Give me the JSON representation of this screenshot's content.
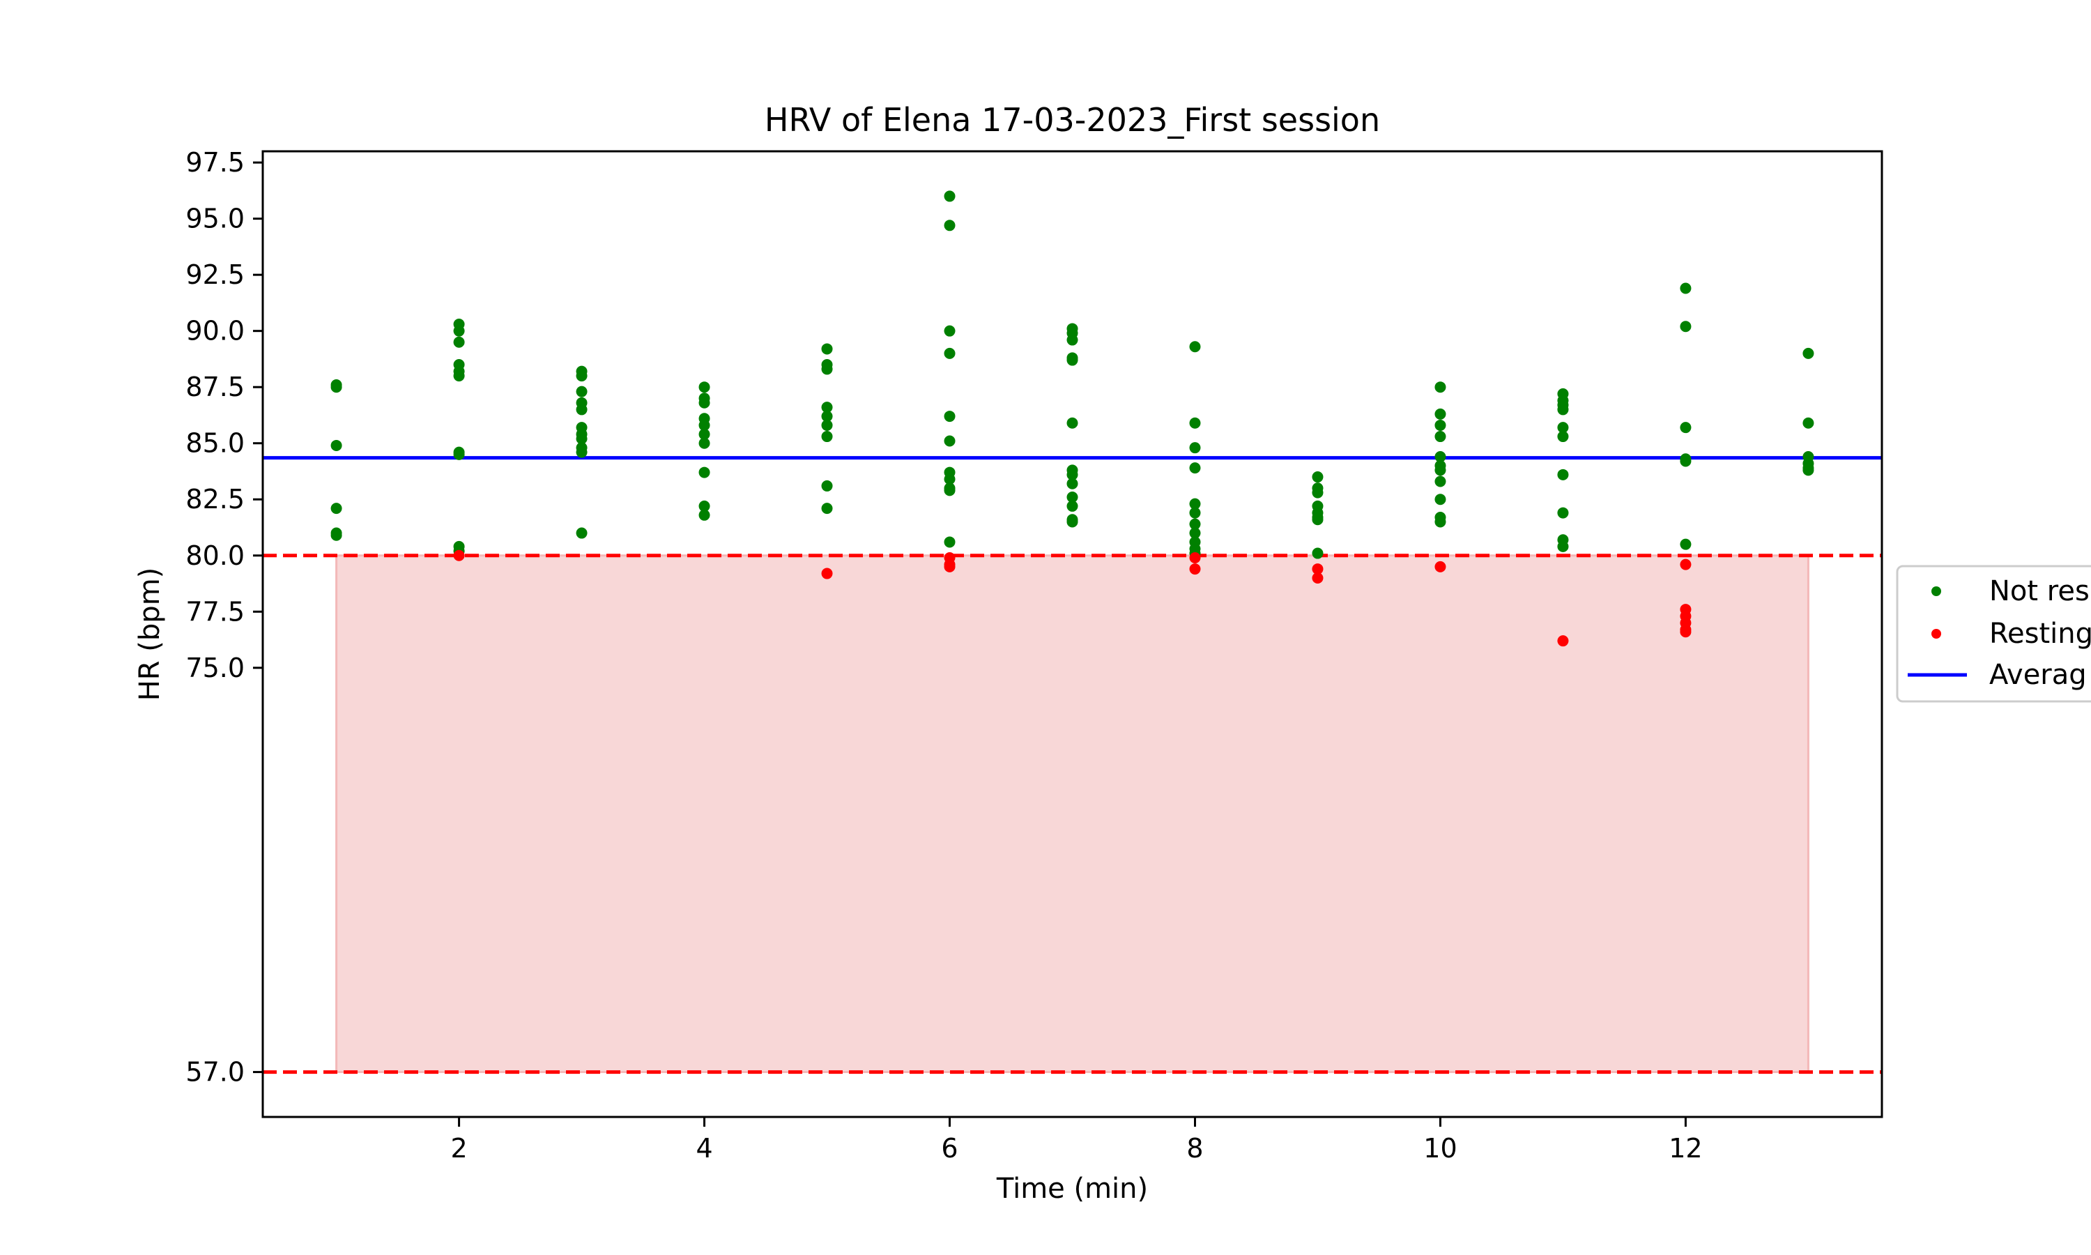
{
  "chart_data": {
    "type": "scatter",
    "title": "HRV of Elena 17-03-2023_First session",
    "xlabel": "Time (min)",
    "ylabel": "HR (bpm)",
    "xlim": [
      0.4,
      13.6
    ],
    "ylim": [
      55.0,
      98.0
    ],
    "x_ticks": [
      2,
      4,
      6,
      8,
      10,
      12
    ],
    "y_ticks": [
      57.0,
      75.0,
      77.5,
      80.0,
      82.5,
      85.0,
      87.5,
      90.0,
      92.5,
      95.0,
      97.5
    ],
    "grid": false,
    "legend_position": "right",
    "series": [
      {
        "name": "Not res",
        "color": "#008000",
        "points": [
          [
            1,
            87.6
          ],
          [
            1,
            87.5
          ],
          [
            1,
            84.9
          ],
          [
            1,
            82.1
          ],
          [
            1,
            81.0
          ],
          [
            1,
            80.9
          ],
          [
            2,
            90.3
          ],
          [
            2,
            90.0
          ],
          [
            2,
            89.5
          ],
          [
            2,
            88.5
          ],
          [
            2,
            88.2
          ],
          [
            2,
            88.0
          ],
          [
            2,
            84.6
          ],
          [
            2,
            84.5
          ],
          [
            2,
            80.4
          ],
          [
            2,
            80.2
          ],
          [
            3,
            88.2
          ],
          [
            3,
            88.0
          ],
          [
            3,
            87.3
          ],
          [
            3,
            86.8
          ],
          [
            3,
            86.5
          ],
          [
            3,
            85.7
          ],
          [
            3,
            85.4
          ],
          [
            3,
            85.2
          ],
          [
            3,
            84.8
          ],
          [
            3,
            84.6
          ],
          [
            3,
            81.0
          ],
          [
            4,
            87.5
          ],
          [
            4,
            87.0
          ],
          [
            4,
            86.8
          ],
          [
            4,
            86.1
          ],
          [
            4,
            85.8
          ],
          [
            4,
            85.4
          ],
          [
            4,
            85.0
          ],
          [
            4,
            83.7
          ],
          [
            4,
            82.2
          ],
          [
            4,
            81.8
          ],
          [
            5,
            89.2
          ],
          [
            5,
            88.5
          ],
          [
            5,
            88.3
          ],
          [
            5,
            86.6
          ],
          [
            5,
            86.2
          ],
          [
            5,
            85.8
          ],
          [
            5,
            85.3
          ],
          [
            5,
            83.1
          ],
          [
            5,
            82.1
          ],
          [
            6,
            96.0
          ],
          [
            6,
            94.7
          ],
          [
            6,
            90.0
          ],
          [
            6,
            89.0
          ],
          [
            6,
            86.2
          ],
          [
            6,
            85.1
          ],
          [
            6,
            83.7
          ],
          [
            6,
            83.4
          ],
          [
            6,
            83.0
          ],
          [
            6,
            82.9
          ],
          [
            6,
            80.6
          ],
          [
            7,
            90.1
          ],
          [
            7,
            89.9
          ],
          [
            7,
            89.6
          ],
          [
            7,
            88.8
          ],
          [
            7,
            88.7
          ],
          [
            7,
            85.9
          ],
          [
            7,
            83.8
          ],
          [
            7,
            83.6
          ],
          [
            7,
            83.2
          ],
          [
            7,
            82.6
          ],
          [
            7,
            82.2
          ],
          [
            7,
            81.6
          ],
          [
            7,
            81.5
          ],
          [
            8,
            89.3
          ],
          [
            8,
            85.9
          ],
          [
            8,
            84.8
          ],
          [
            8,
            83.9
          ],
          [
            8,
            82.3
          ],
          [
            8,
            81.9
          ],
          [
            8,
            81.4
          ],
          [
            8,
            81.0
          ],
          [
            8,
            80.6
          ],
          [
            8,
            80.3
          ],
          [
            8,
            80.1
          ],
          [
            9,
            83.5
          ],
          [
            9,
            83.0
          ],
          [
            9,
            82.8
          ],
          [
            9,
            82.2
          ],
          [
            9,
            81.9
          ],
          [
            9,
            81.7
          ],
          [
            9,
            81.6
          ],
          [
            9,
            80.1
          ],
          [
            10,
            87.5
          ],
          [
            10,
            86.3
          ],
          [
            10,
            85.8
          ],
          [
            10,
            85.3
          ],
          [
            10,
            84.4
          ],
          [
            10,
            84.0
          ],
          [
            10,
            83.8
          ],
          [
            10,
            83.3
          ],
          [
            10,
            82.5
          ],
          [
            10,
            81.7
          ],
          [
            10,
            81.5
          ],
          [
            11,
            87.2
          ],
          [
            11,
            86.9
          ],
          [
            11,
            86.7
          ],
          [
            11,
            86.5
          ],
          [
            11,
            85.7
          ],
          [
            11,
            85.3
          ],
          [
            11,
            83.6
          ],
          [
            11,
            81.9
          ],
          [
            11,
            80.7
          ],
          [
            11,
            80.4
          ],
          [
            12,
            91.9
          ],
          [
            12,
            90.2
          ],
          [
            12,
            85.7
          ],
          [
            12,
            84.3
          ],
          [
            12,
            84.2
          ],
          [
            12,
            80.5
          ],
          [
            13,
            89.0
          ],
          [
            13,
            85.9
          ],
          [
            13,
            84.4
          ],
          [
            13,
            84.1
          ],
          [
            13,
            83.9
          ],
          [
            13,
            83.8
          ]
        ]
      },
      {
        "name": "Resting",
        "color": "#ff0000",
        "points": [
          [
            2,
            80.0
          ],
          [
            5,
            79.2
          ],
          [
            6,
            79.9
          ],
          [
            6,
            79.6
          ],
          [
            6,
            79.5
          ],
          [
            8,
            79.9
          ],
          [
            8,
            79.4
          ],
          [
            9,
            79.4
          ],
          [
            9,
            79.0
          ],
          [
            10,
            79.5
          ],
          [
            11,
            76.2
          ],
          [
            12,
            79.6
          ],
          [
            12,
            77.6
          ],
          [
            12,
            77.3
          ],
          [
            12,
            77.0
          ],
          [
            12,
            76.7
          ],
          [
            12,
            76.6
          ]
        ]
      }
    ],
    "average_line": {
      "name": "Averag",
      "value": 84.35,
      "color": "#0000ff"
    },
    "threshold_lines": [
      {
        "value": 80.0,
        "color": "#ff0000",
        "style": "dashed"
      },
      {
        "value": 57.0,
        "color": "#ff0000",
        "style": "dashed"
      }
    ],
    "shaded_band": {
      "x_start": 1,
      "x_end": 13,
      "y_low": 57.0,
      "y_high": 80.0,
      "color": "#f8d7d7"
    }
  }
}
